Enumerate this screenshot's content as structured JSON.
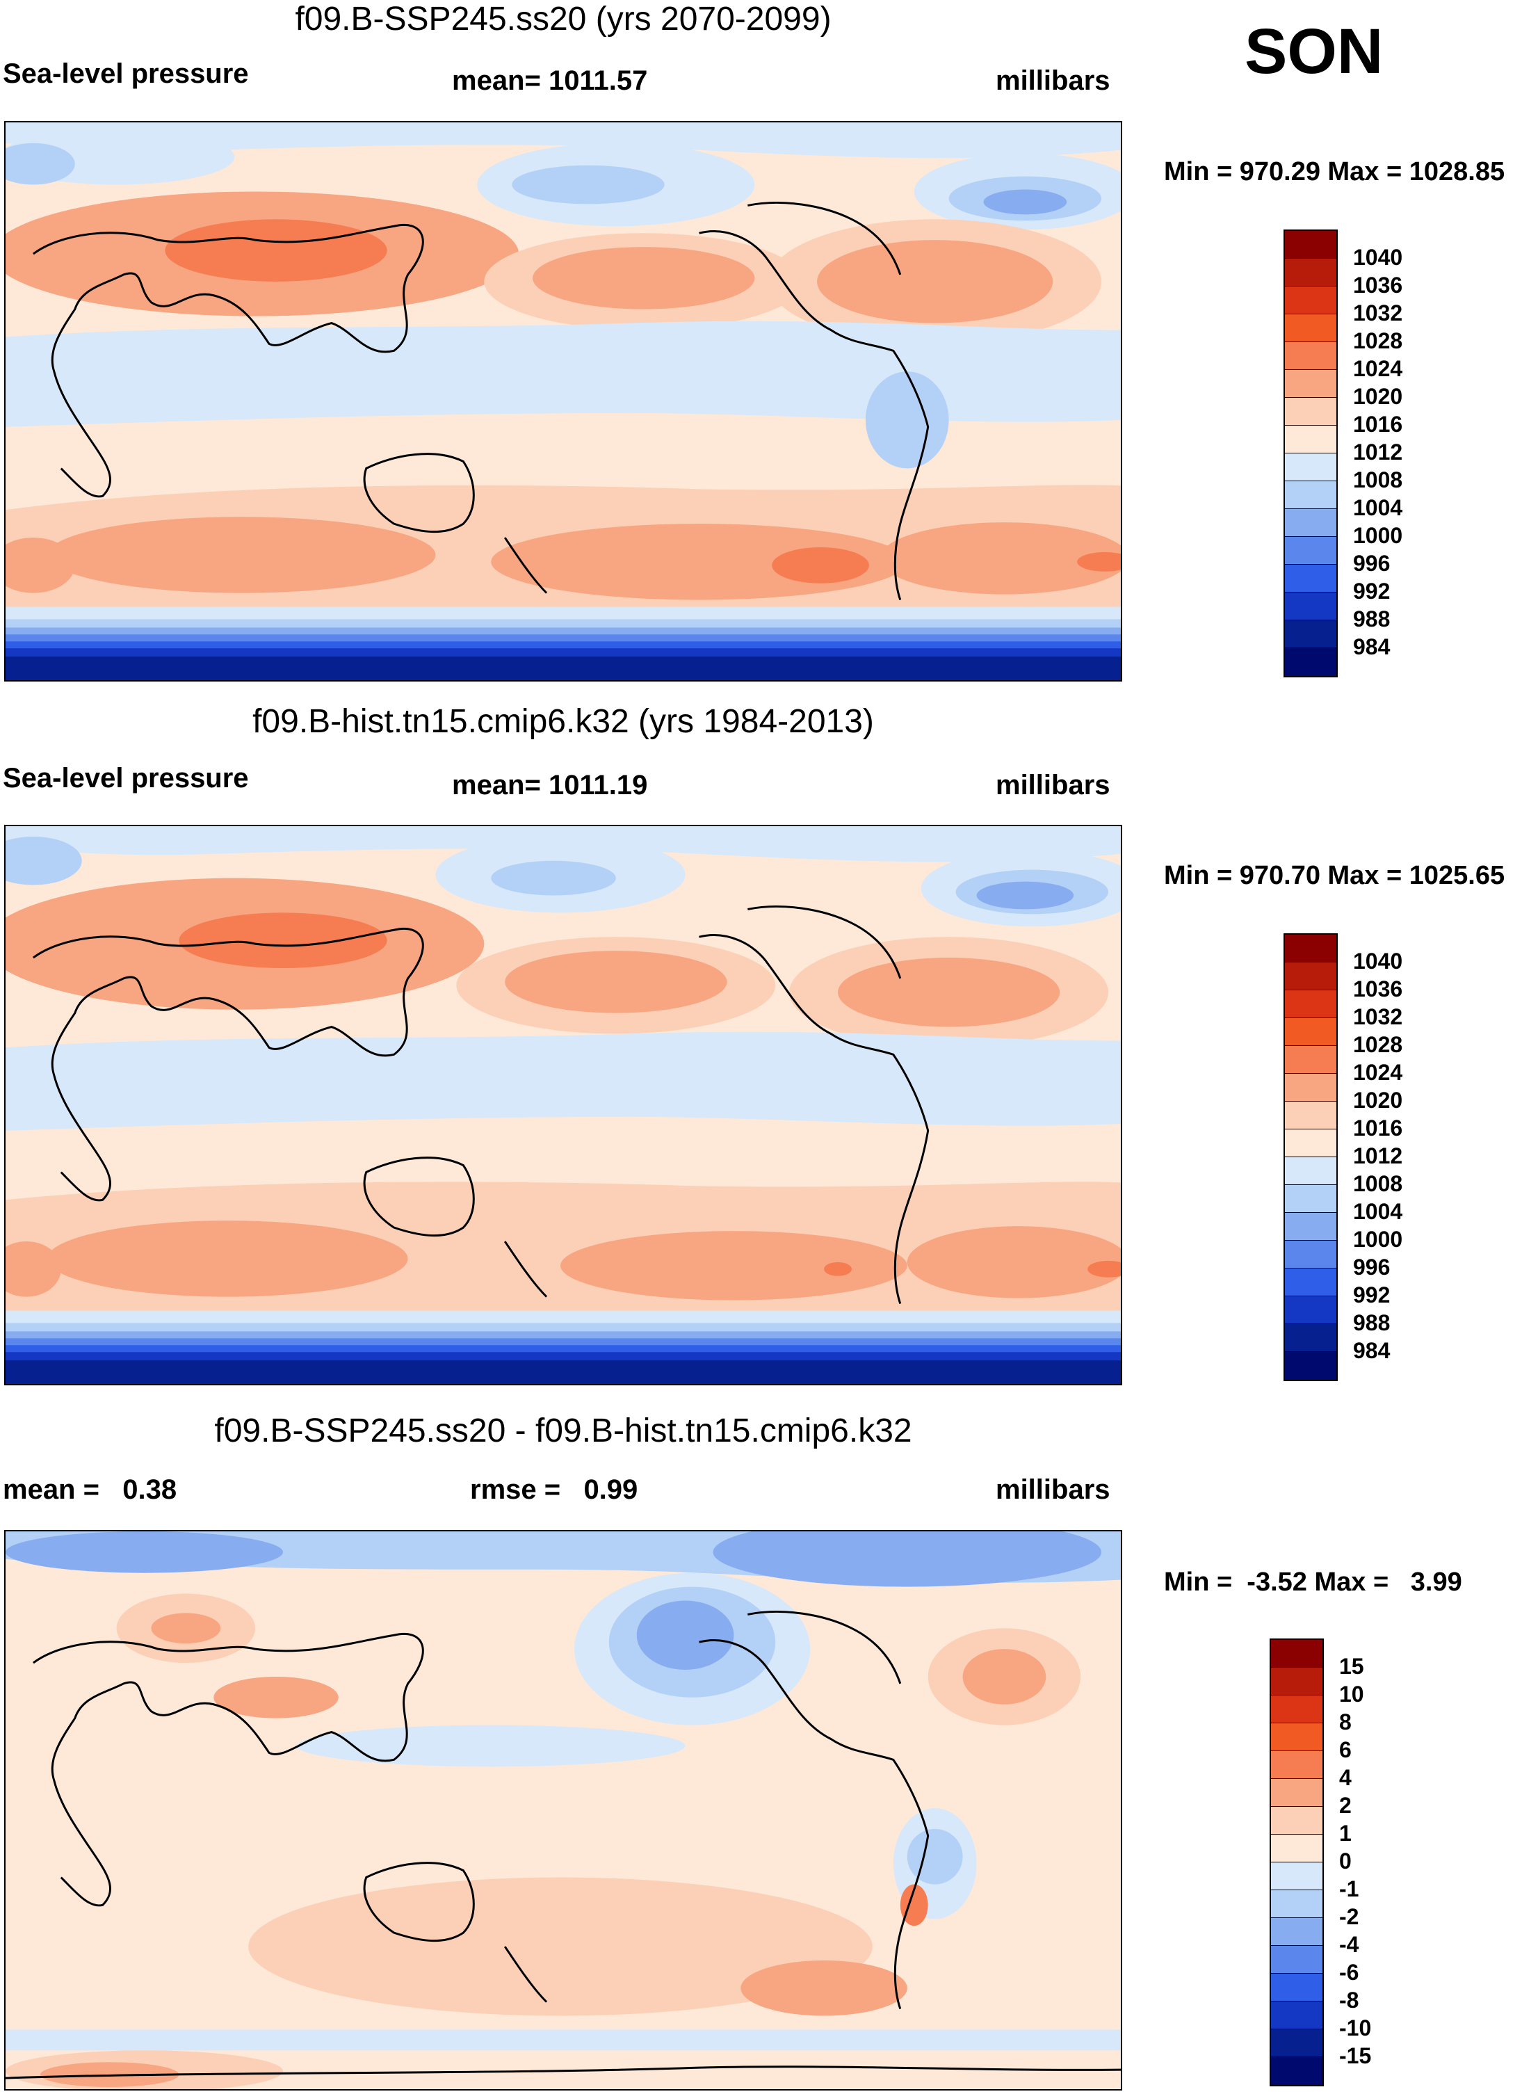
{
  "season": "SON",
  "units": "millibars",
  "panels": [
    {
      "title": "f09.B-SSP245.ss20 (yrs 2070-2099)",
      "left_label": "Sea-level pressure",
      "center_label": "mean= 1011.57",
      "right_label": "millibars",
      "minmax": "Min = 970.29 Max = 1028.85",
      "colorbar_labels": [
        "1040",
        "1036",
        "1032",
        "1028",
        "1024",
        "1020",
        "1016",
        "1012",
        "1008",
        "1004",
        "1000",
        "996",
        "992",
        "988",
        "984"
      ],
      "colorbar_colors": [
        "#8b0000",
        "#b71c0a",
        "#dc3515",
        "#f25a23",
        "#f67c52",
        "#f8a582",
        "#fbd0b7",
        "#fee9d8",
        "#d6e8fa",
        "#b3d0f6",
        "#87adf0",
        "#5b86ec",
        "#2f5fe8",
        "#1538c4",
        "#06208f",
        "#000a6e"
      ]
    },
    {
      "title": "f09.B-hist.tn15.cmip6.k32 (yrs 1984-2013)",
      "left_label": "Sea-level pressure",
      "center_label": "mean= 1011.19",
      "right_label": "millibars",
      "minmax": "Min = 970.70 Max = 1025.65",
      "colorbar_labels": [
        "1040",
        "1036",
        "1032",
        "1028",
        "1024",
        "1020",
        "1016",
        "1012",
        "1008",
        "1004",
        "1000",
        "996",
        "992",
        "988",
        "984"
      ],
      "colorbar_colors": [
        "#8b0000",
        "#b71c0a",
        "#dc3515",
        "#f25a23",
        "#f67c52",
        "#f8a582",
        "#fbd0b7",
        "#fee9d8",
        "#d6e8fa",
        "#b3d0f6",
        "#87adf0",
        "#5b86ec",
        "#2f5fe8",
        "#1538c4",
        "#06208f",
        "#000a6e"
      ]
    },
    {
      "title": "f09.B-SSP245.ss20 - f09.B-hist.tn15.cmip6.k32",
      "left_label": "mean =   0.38",
      "center_label": "rmse =   0.99",
      "right_label": "millibars",
      "minmax": "Min =  -3.52 Max =   3.99",
      "colorbar_labels": [
        "15",
        "10",
        "8",
        "6",
        "4",
        "2",
        "1",
        "0",
        "-1",
        "-2",
        "-4",
        "-6",
        "-8",
        "-10",
        "-15"
      ],
      "colorbar_colors": [
        "#8b0000",
        "#b71c0a",
        "#dc3515",
        "#f25a23",
        "#f67c52",
        "#f8a582",
        "#fbd0b7",
        "#fee9d8",
        "#d6e8fa",
        "#b3d0f6",
        "#87adf0",
        "#5b86ec",
        "#2f5fe8",
        "#1538c4",
        "#06208f",
        "#000a6e"
      ]
    }
  ]
}
